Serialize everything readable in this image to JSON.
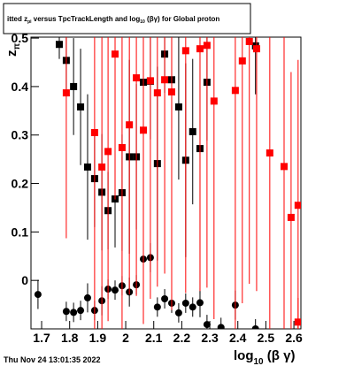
{
  "chart_data": {
    "type": "scatter",
    "title_parts": [
      "itted z",
      "pi",
      " versus TpcTrackLength and log",
      "10",
      " (βγ) for Global proton"
    ],
    "x_label_parts": [
      "log",
      "10",
      " (β γ)"
    ],
    "y_label_parts": [
      "z",
      "π"
    ],
    "footer": "Thu Nov 24 13:01:35 2022",
    "xlim": [
      1.662,
      2.625
    ],
    "ylim": [
      -0.1,
      0.502
    ],
    "xticks": [
      1.7,
      1.8,
      1.9,
      2,
      2.1,
      2.2,
      2.3,
      2.4,
      2.5,
      2.6
    ],
    "yticks": [
      0,
      0.1,
      0.2,
      0.3,
      0.4,
      0.5
    ],
    "series": [
      {
        "color": "#000000",
        "marker": "square",
        "x": [
          1.763,
          1.788,
          1.814,
          1.839,
          1.864,
          1.889,
          1.915,
          1.937,
          1.962,
          1.987,
          2.013,
          2.038,
          2.063,
          2.088,
          2.113,
          2.139,
          2.164,
          2.189,
          2.214,
          2.239,
          2.265,
          2.29,
          2.463
        ],
        "values": [
          0.487,
          0.454,
          0.4,
          0.358,
          0.234,
          0.21,
          0.182,
          0.144,
          0.168,
          0.181,
          0.255,
          0.255,
          0.409,
          0.411,
          0.241,
          0.467,
          0.414,
          0.358,
          0.248,
          0.307,
          0.272,
          0.409,
          0.484
        ],
        "errors": [
          0.03,
          0.06,
          0.1,
          0.12,
          0.15,
          0.1,
          0.12,
          0.08,
          0.1,
          0.12,
          0.2,
          0.15,
          0.15,
          0.12,
          0.2,
          0.08,
          0.1,
          0.15,
          0.2,
          0.15,
          0.3,
          0.12,
          0.1
        ]
      },
      {
        "color": "#000000",
        "marker": "circle",
        "x": [
          1.687,
          1.788,
          1.814,
          1.839,
          1.864,
          1.889,
          1.915,
          1.937,
          1.962,
          1.987,
          2.013,
          2.038,
          2.063,
          2.088,
          2.113,
          2.139,
          2.164,
          2.189,
          2.214,
          2.239,
          2.265,
          2.29,
          2.34,
          2.391,
          2.463
        ],
        "values": [
          -0.029,
          -0.064,
          -0.066,
          -0.062,
          -0.036,
          -0.062,
          -0.042,
          -0.018,
          -0.02,
          -0.011,
          -0.024,
          -0.009,
          0.044,
          0.047,
          -0.055,
          -0.038,
          -0.047,
          -0.067,
          -0.047,
          -0.055,
          -0.046,
          -0.091,
          -0.097,
          -0.051,
          -0.1
        ],
        "errors": [
          0.03,
          0.02,
          0.02,
          0.02,
          0.03,
          0.02,
          0.03,
          0.02,
          0.02,
          0.02,
          0.03,
          0.02,
          0.03,
          0.03,
          0.02,
          0.02,
          0.02,
          0.02,
          0.02,
          0.02,
          0.03,
          0.02,
          0.02,
          0.03,
          0.02
        ]
      },
      {
        "color": "#ff0000",
        "marker": "square",
        "x": [
          1.788,
          1.889,
          1.915,
          1.937,
          1.962,
          1.987,
          2.013,
          2.038,
          2.063,
          2.088,
          2.113,
          2.139,
          2.164,
          2.214,
          2.265,
          2.29,
          2.315,
          2.391,
          2.416,
          2.441,
          2.467,
          2.514,
          2.565,
          2.59,
          2.615,
          2.615
        ],
        "values": [
          0.387,
          0.305,
          0.234,
          0.266,
          0.467,
          0.274,
          0.321,
          0.418,
          0.31,
          0.412,
          0.387,
          0.414,
          0.389,
          0.474,
          0.478,
          0.485,
          0.37,
          0.392,
          0.453,
          0.493,
          0.478,
          0.263,
          0.235,
          0.13,
          0.155,
          -0.086
        ],
        "errors": [
          0.3,
          0.45,
          0.4,
          0.35,
          0.3,
          0.4,
          0.35,
          0.45,
          0.4,
          0.45,
          0.4,
          0.4,
          0.45,
          0.5,
          0.5,
          0.5,
          0.45,
          0.5,
          0.5,
          0.5,
          0.5,
          0.4,
          0.4,
          0.3,
          0.3,
          0.05
        ]
      }
    ]
  }
}
